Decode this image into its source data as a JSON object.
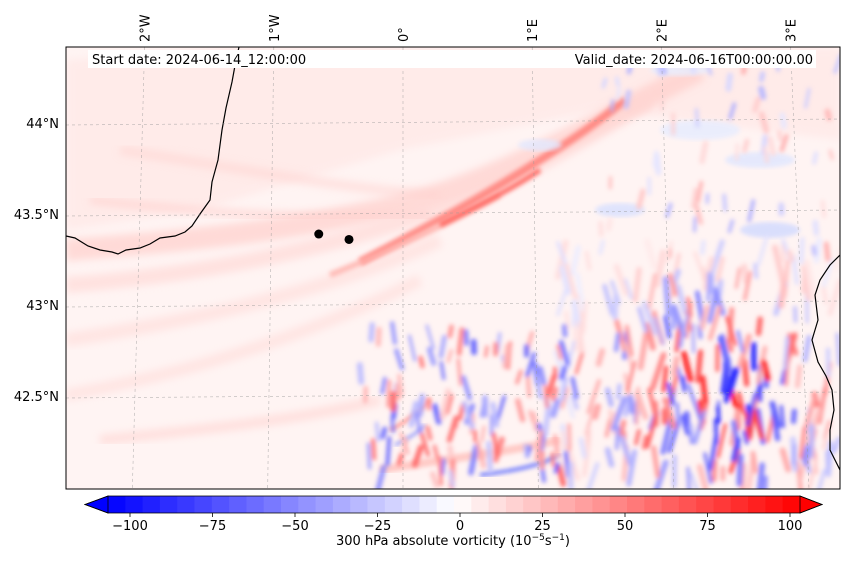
{
  "header": {
    "start_date": "Start date: 2024-06-14_12:00:00",
    "valid_date": "Valid_date: 2024-06-16T00:00:00.00"
  },
  "map": {
    "lon_ticks": [
      {
        "value": -2,
        "label": "2°W"
      },
      {
        "value": -1,
        "label": "1°W"
      },
      {
        "value": 0,
        "label": "0°"
      },
      {
        "value": 1,
        "label": "1°E"
      },
      {
        "value": 2,
        "label": "2°E"
      },
      {
        "value": 3,
        "label": "3°E"
      }
    ],
    "lat_ticks": [
      {
        "value": 44.0,
        "label": "44°N"
      },
      {
        "value": 43.5,
        "label": "43.5°N"
      },
      {
        "value": 43.0,
        "label": "43°N"
      },
      {
        "value": 42.5,
        "label": "42.5°N"
      }
    ],
    "markers": [
      {
        "lon": -0.64,
        "lat": 43.39
      },
      {
        "lon": -0.41,
        "lat": 43.36
      }
    ]
  },
  "colorbar": {
    "ticks": [
      "−100",
      "−75",
      "−50",
      "−25",
      "0",
      "25",
      "50",
      "75",
      "100"
    ],
    "label": "300 hPa absolute vorticity (10",
    "label_exp1": "−5",
    "label_mid": "s",
    "label_exp2": "−1",
    "label_end": ")",
    "range": [
      -100,
      100
    ],
    "colors": {
      "min": "#0000ff",
      "mid": "#ffffff",
      "max": "#ff0000"
    }
  }
}
